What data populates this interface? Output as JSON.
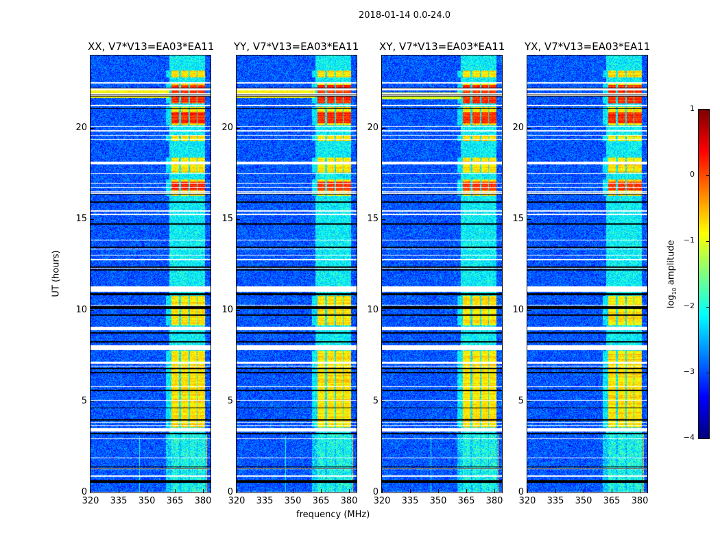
{
  "chart_data": {
    "type": "heatmap",
    "title": "2018-01-14 0.0-24.0",
    "xlabel": "frequency (MHz)",
    "ylabel": "UT (hours)",
    "xlim": [
      320,
      384
    ],
    "ylim": [
      0,
      24
    ],
    "xticks": [
      320,
      335,
      350,
      365,
      380
    ],
    "yticks": [
      0,
      5,
      10,
      15,
      20
    ],
    "panels": [
      {
        "title": "XX, V7*V13=EA03*EA11"
      },
      {
        "title": "YY, V7*V13=EA03*EA11"
      },
      {
        "title": "XY, V7*V13=EA03*EA11"
      },
      {
        "title": "YX, V7*V13=EA03*EA11"
      }
    ],
    "colorbar": {
      "label": "log10 amplitude",
      "label_main": "log",
      "label_sub": "10",
      "label_rest": " amplitude",
      "range": [
        -4,
        1
      ],
      "ticks": [
        "1",
        "0",
        "−1",
        "−2",
        "−3",
        "−4"
      ],
      "colormap": "jet"
    },
    "model": {
      "background_level": -3.3,
      "bright_band_MHz": [
        [
          363,
          367
        ],
        [
          368,
          372
        ],
        [
          373,
          376.5
        ],
        [
          377,
          381
        ]
      ],
      "active_hours": [
        [
          3.6,
          7.8
        ],
        [
          9.2,
          10.8
        ],
        [
          16.3,
          17.2
        ],
        [
          17.6,
          18.4
        ],
        [
          19.3,
          19.6
        ],
        [
          20.2,
          21.2
        ],
        [
          21.4,
          22.5
        ],
        [
          22.8,
          23.2
        ]
      ],
      "strong_hours": [
        [
          21.4,
          22.4
        ],
        [
          16.6,
          17.1
        ],
        [
          20.3,
          20.9
        ]
      ],
      "rfi_line_hours": [
        [
          21.7,
          22.1
        ]
      ],
      "flagged_hours_white": [
        [
          3.35,
          3.55
        ],
        [
          3.85,
          3.9
        ],
        [
          7.85,
          7.92
        ],
        [
          9.0,
          9.12
        ],
        [
          11.05,
          11.35
        ],
        [
          19.85,
          19.92
        ],
        [
          21.25,
          21.32
        ],
        [
          1.9,
          1.95
        ],
        [
          0.9,
          0.95
        ]
      ],
      "flagged_hours_black": [
        [
          3.2,
          3.3
        ],
        [
          0.55,
          0.7
        ],
        [
          10.85,
          10.95
        ],
        [
          16.4,
          16.5
        ],
        [
          22.5,
          22.55
        ]
      ]
    }
  }
}
